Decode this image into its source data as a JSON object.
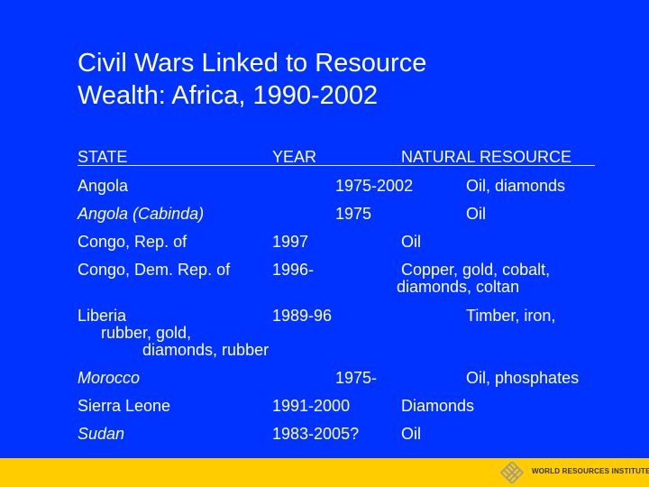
{
  "title": {
    "line1": "Civil Wars Linked to Resource",
    "line2": "Wealth: Africa, 1990-2002"
  },
  "headers": {
    "state": "STATE",
    "year": "YEAR",
    "resource": "NATURAL RESOURCE"
  },
  "rows": [
    {
      "state": "Angola",
      "year": "1975-2002",
      "resource": "Oil, diamonds"
    },
    {
      "state": "Angola (Cabinda)",
      "year": "1975",
      "resource": "Oil"
    },
    {
      "state": "Congo, Rep. of",
      "year": "1997",
      "resource": "Oil"
    },
    {
      "state": "Congo, Dem. Rep. of",
      "year": "1996-",
      "resource": "Copper, gold, cobalt,",
      "resource2": "diamonds, coltan"
    },
    {
      "state": "Liberia",
      "year": "1989-96",
      "resource": "Timber, iron,",
      "resource2": "rubber, gold,",
      "resource3": "diamonds, rubber"
    },
    {
      "state": "Morocco",
      "year": "1975-",
      "resource": "Oil, phosphates"
    },
    {
      "state": "Sierra Leone",
      "year": "1991-2000",
      "resource": "Diamonds"
    },
    {
      "state": "Sudan",
      "year": "1983-2005?",
      "resource": "Oil"
    }
  ],
  "footer": {
    "logo_icon": "wri-lattice-icon",
    "org": "WORLD RESOURCES INSTITUTE",
    "bar_color": "#ffcc00",
    "background_color": "#0033ff"
  }
}
